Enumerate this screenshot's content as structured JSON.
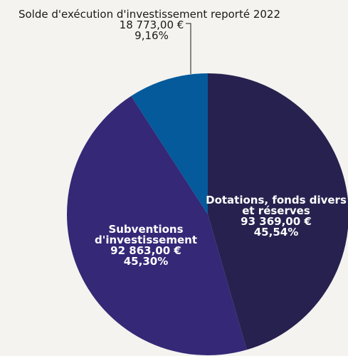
{
  "chart_data": {
    "type": "pie",
    "title": "",
    "slices": [
      {
        "label": "Dotations, fonds divers et réserves",
        "label_lines": [
          "Dotations, fonds divers",
          "et réserves"
        ],
        "value": 93369.0,
        "amount_text": "93 369,00 €",
        "percent": 45.54,
        "percent_text": "45,54%",
        "color": "#27214f"
      },
      {
        "label": "Subventions d'investissement",
        "label_lines": [
          "Subventions",
          "d'investissement"
        ],
        "value": 92863.0,
        "amount_text": "92 863,00 €",
        "percent": 45.3,
        "percent_text": "45,30%",
        "color": "#342877"
      },
      {
        "label": "Solde d'exécution d'investissement reporté 2022",
        "label_lines": [
          "Solde d'exécution d'investissement reporté 2022"
        ],
        "value": 18773.0,
        "amount_text": "18 773,00 €",
        "percent": 9.16,
        "percent_text": "9,16%",
        "color": "#045a9a"
      }
    ],
    "start_angle_deg": 0,
    "direction": "clockwise",
    "legend": "none"
  }
}
